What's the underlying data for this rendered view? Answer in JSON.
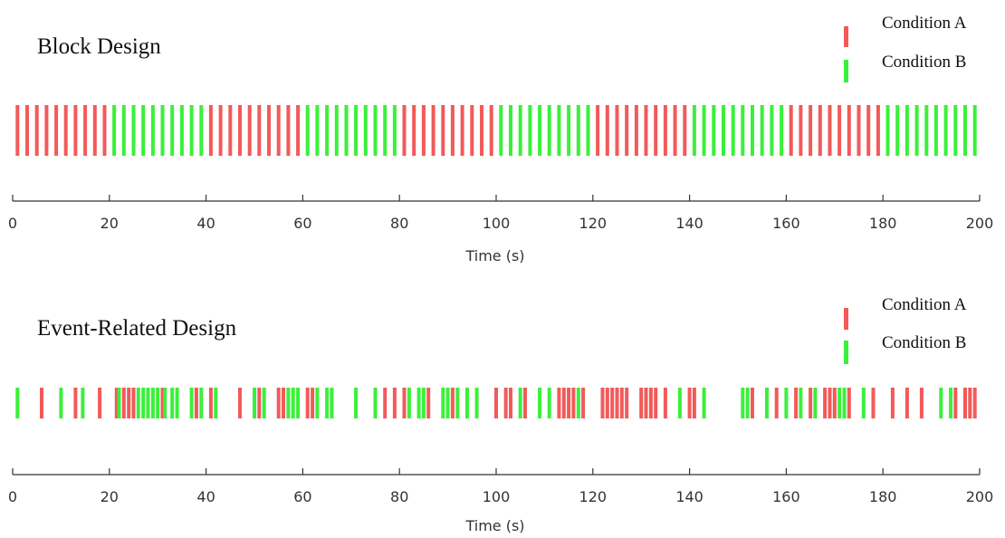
{
  "colors": {
    "condition_a": "#f25a5a",
    "condition_b": "#3bf03b",
    "axis": "#333333"
  },
  "chart_data": [
    {
      "type": "event-raster",
      "title": "Block Design",
      "xlabel": "Time (s)",
      "xlim": [
        0,
        200
      ],
      "xticks": [
        0,
        20,
        40,
        60,
        80,
        100,
        120,
        140,
        160,
        180,
        200
      ],
      "legend": [
        "Condition A",
        "Condition B"
      ],
      "legend_position": "top-right",
      "series": [
        {
          "name": "Condition A",
          "color": "#f25a5a",
          "blocks": [
            [
              0,
              20
            ],
            [
              40,
              60
            ],
            [
              80,
              100
            ],
            [
              120,
              140
            ],
            [
              160,
              180
            ]
          ]
        },
        {
          "name": "Condition B",
          "color": "#3bf03b",
          "blocks": [
            [
              20,
              40
            ],
            [
              60,
              80
            ],
            [
              100,
              120
            ],
            [
              140,
              160
            ],
            [
              180,
              200
            ]
          ]
        }
      ],
      "event_interval": 2
    },
    {
      "type": "event-raster",
      "title": "Event-Related Design",
      "xlabel": "Time (s)",
      "xlim": [
        0,
        200
      ],
      "xticks": [
        0,
        20,
        40,
        60,
        80,
        100,
        120,
        140,
        160,
        180,
        200
      ],
      "legend": [
        "Condition A",
        "Condition B"
      ],
      "legend_position": "top-right",
      "series": [
        {
          "name": "Condition A",
          "color": "#f25a5a",
          "x": [
            6,
            13,
            18,
            21.5,
            23,
            24,
            25,
            31,
            38,
            41,
            47,
            51,
            55,
            56,
            61,
            62,
            77,
            79,
            81,
            86,
            91,
            100,
            102,
            103,
            106,
            113,
            114,
            115,
            116,
            118,
            122,
            123,
            124,
            125,
            126,
            127,
            130,
            131,
            132,
            133,
            135,
            140,
            141,
            153,
            158,
            162,
            165,
            168,
            169,
            170,
            173,
            178,
            182,
            185,
            188,
            195,
            197,
            198,
            199
          ]
        },
        {
          "name": "Condition B",
          "color": "#3bf03b",
          "x": [
            1,
            10,
            14.5,
            22,
            26,
            27,
            28,
            29,
            30,
            31.5,
            33,
            34,
            37,
            39,
            42,
            50,
            52,
            57,
            58,
            59,
            63,
            65,
            66,
            71,
            75,
            82,
            84,
            85,
            89,
            90,
            92,
            94,
            96,
            105,
            109,
            111,
            117,
            138,
            143,
            151,
            152,
            156,
            160,
            163,
            166,
            171,
            172,
            176,
            192,
            194
          ]
        }
      ]
    }
  ]
}
